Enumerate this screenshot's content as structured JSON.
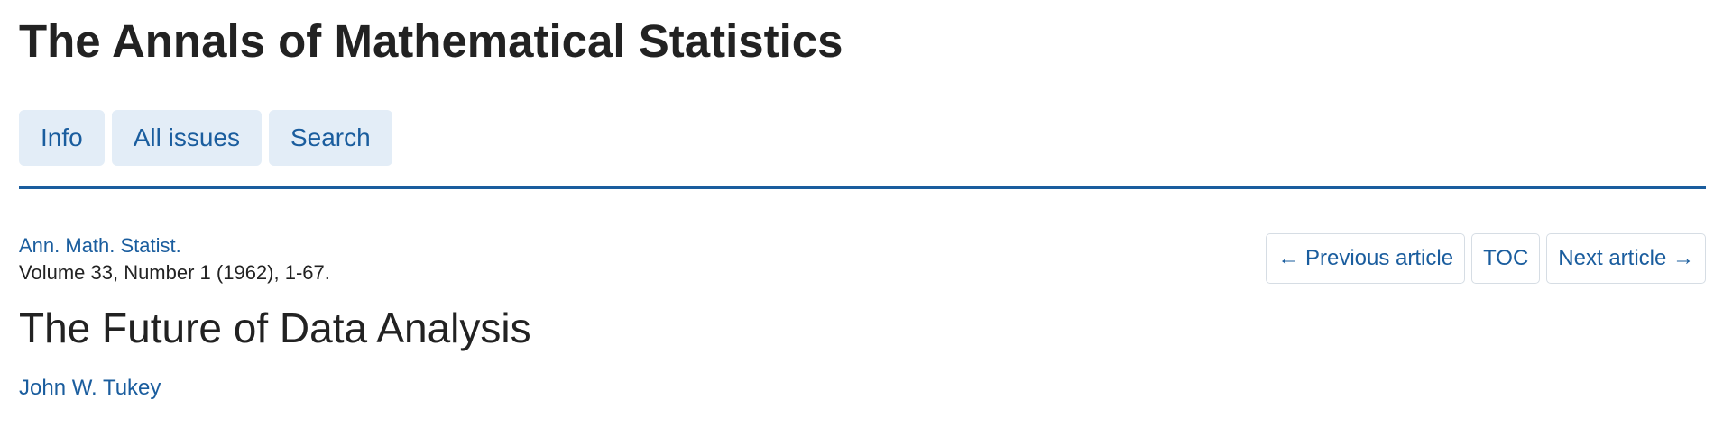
{
  "header": {
    "journal_title": "The Annals of Mathematical Statistics"
  },
  "nav": {
    "tabs": [
      {
        "label": "Info"
      },
      {
        "label": "All issues"
      },
      {
        "label": "Search"
      }
    ]
  },
  "citation": {
    "journal_abbrev": "Ann. Math. Statist.",
    "volume_info": "Volume 33, Number 1 (1962), 1-67."
  },
  "article_nav": {
    "previous_label": "← Previous article",
    "toc_label": "TOC",
    "next_label": "Next article →"
  },
  "article": {
    "title": "The Future of Data Analysis",
    "author": "John W. Tukey"
  },
  "colors": {
    "accent": "#1a5d9e",
    "tab_background": "#e3edf7",
    "text": "#222222"
  }
}
